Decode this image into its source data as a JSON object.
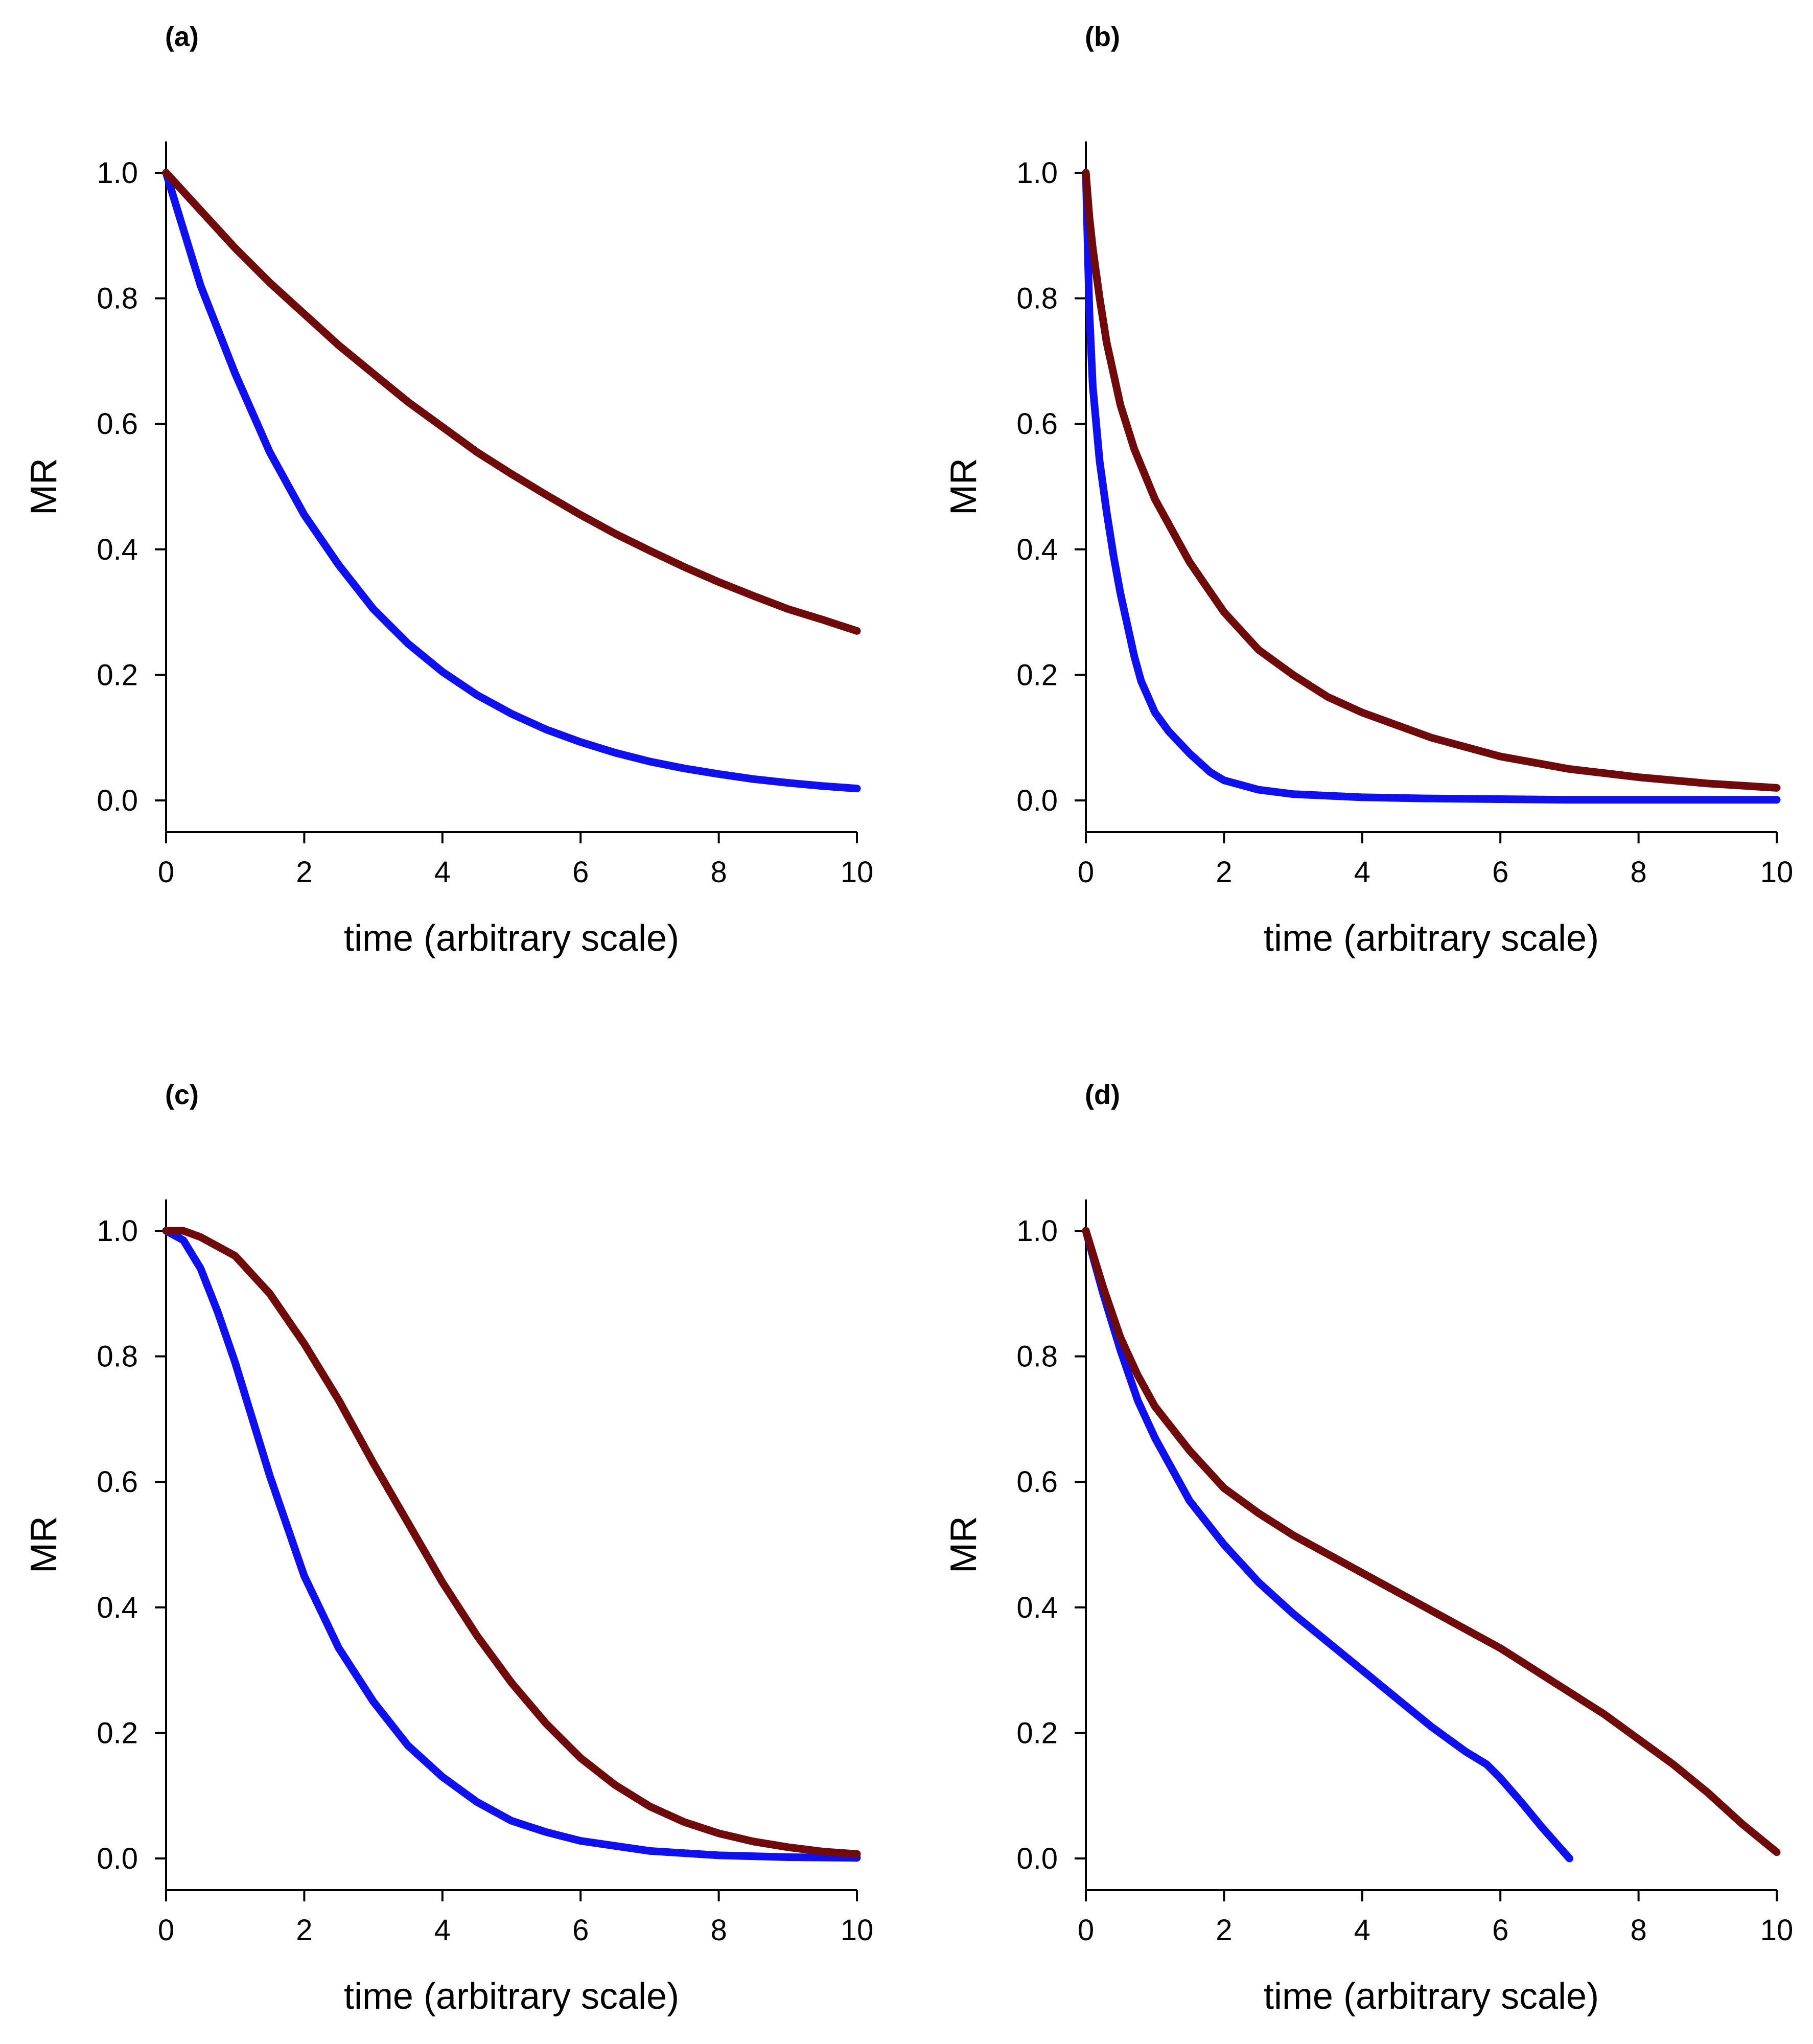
{
  "chart_data": [
    {
      "type": "line",
      "panel_label": "(a)",
      "xlabel": "time (arbitrary scale)",
      "ylabel": "MR",
      "xlim": [
        0,
        10
      ],
      "ylim": [
        -0.05,
        1.05
      ],
      "xticks": [
        0,
        2,
        4,
        6,
        8,
        10
      ],
      "yticks": [
        0.0,
        0.2,
        0.4,
        0.6,
        0.8,
        1.0
      ],
      "xtick_labels": [
        "0",
        "2",
        "4",
        "6",
        "8",
        "10"
      ],
      "ytick_labels": [
        "0.0",
        "0.2",
        "0.4",
        "0.6",
        "0.8",
        "1.0"
      ],
      "grid": false,
      "series": [
        {
          "name": "blue",
          "color": "#1010ee",
          "x": [
            0,
            0.5,
            1,
            1.5,
            2,
            2.5,
            3,
            3.5,
            4,
            4.5,
            5,
            5.5,
            6,
            6.5,
            7,
            7.5,
            8,
            8.5,
            9,
            9.5,
            10
          ],
          "y": [
            1.0,
            0.82,
            0.68,
            0.555,
            0.455,
            0.375,
            0.305,
            0.25,
            0.205,
            0.168,
            0.138,
            0.113,
            0.093,
            0.076,
            0.062,
            0.051,
            0.042,
            0.034,
            0.028,
            0.023,
            0.019
          ]
        },
        {
          "name": "dark red",
          "color": "#6e0a0a",
          "x": [
            0,
            0.5,
            1,
            1.5,
            2,
            2.5,
            3,
            3.5,
            4,
            4.5,
            5,
            5.5,
            6,
            6.5,
            7,
            7.5,
            8,
            8.5,
            9,
            9.5,
            10
          ],
          "y": [
            1.0,
            0.94,
            0.88,
            0.825,
            0.775,
            0.725,
            0.68,
            0.635,
            0.595,
            0.555,
            0.52,
            0.487,
            0.455,
            0.425,
            0.398,
            0.372,
            0.348,
            0.326,
            0.305,
            0.288,
            0.27
          ]
        }
      ]
    },
    {
      "type": "line",
      "panel_label": "(b)",
      "xlabel": "time (arbitrary scale)",
      "ylabel": "MR",
      "xlim": [
        0,
        10
      ],
      "ylim": [
        -0.05,
        1.05
      ],
      "xticks": [
        0,
        2,
        4,
        6,
        8,
        10
      ],
      "yticks": [
        0.0,
        0.2,
        0.4,
        0.6,
        0.8,
        1.0
      ],
      "xtick_labels": [
        "0",
        "2",
        "4",
        "6",
        "8",
        "10"
      ],
      "ytick_labels": [
        "0.0",
        "0.2",
        "0.4",
        "0.6",
        "0.8",
        "1.0"
      ],
      "grid": false,
      "series": [
        {
          "name": "blue",
          "color": "#1010ee",
          "x": [
            0,
            0.05,
            0.1,
            0.2,
            0.3,
            0.4,
            0.5,
            0.6,
            0.7,
            0.8,
            1,
            1.2,
            1.5,
            1.8,
            2,
            2.5,
            3,
            4,
            5,
            6,
            7,
            8,
            9,
            10
          ],
          "y": [
            1.0,
            0.78,
            0.66,
            0.54,
            0.46,
            0.39,
            0.33,
            0.28,
            0.23,
            0.19,
            0.14,
            0.11,
            0.075,
            0.045,
            0.032,
            0.017,
            0.01,
            0.005,
            0.003,
            0.002,
            0.001,
            0.001,
            0.001,
            0.001
          ]
        },
        {
          "name": "dark red",
          "color": "#6e0a0a",
          "x": [
            0,
            0.05,
            0.1,
            0.2,
            0.3,
            0.5,
            0.7,
            1,
            1.5,
            2,
            2.5,
            3,
            3.5,
            4,
            5,
            6,
            7,
            8,
            9,
            10
          ],
          "y": [
            1.0,
            0.93,
            0.88,
            0.8,
            0.73,
            0.63,
            0.56,
            0.48,
            0.38,
            0.3,
            0.24,
            0.2,
            0.165,
            0.14,
            0.1,
            0.07,
            0.05,
            0.037,
            0.027,
            0.02
          ]
        }
      ]
    },
    {
      "type": "line",
      "panel_label": "(c)",
      "xlabel": "time (arbitrary scale)",
      "ylabel": "MR",
      "xlim": [
        0,
        10
      ],
      "ylim": [
        -0.05,
        1.05
      ],
      "xticks": [
        0,
        2,
        4,
        6,
        8,
        10
      ],
      "yticks": [
        0.0,
        0.2,
        0.4,
        0.6,
        0.8,
        1.0
      ],
      "xtick_labels": [
        "0",
        "2",
        "4",
        "6",
        "8",
        "10"
      ],
      "ytick_labels": [
        "0.0",
        "0.2",
        "0.4",
        "0.6",
        "0.8",
        "1.0"
      ],
      "grid": false,
      "series": [
        {
          "name": "blue",
          "color": "#1010ee",
          "x": [
            0,
            0.25,
            0.5,
            0.75,
            1,
            1.25,
            1.5,
            1.75,
            2,
            2.5,
            3,
            3.5,
            4,
            4.5,
            5,
            5.5,
            6,
            7,
            8,
            9,
            10
          ],
          "y": [
            1.0,
            0.985,
            0.94,
            0.87,
            0.79,
            0.7,
            0.61,
            0.53,
            0.45,
            0.335,
            0.25,
            0.18,
            0.13,
            0.09,
            0.06,
            0.042,
            0.028,
            0.012,
            0.005,
            0.002,
            0.001
          ]
        },
        {
          "name": "dark red",
          "color": "#6e0a0a",
          "x": [
            0,
            0.25,
            0.5,
            1,
            1.5,
            2,
            2.5,
            3,
            3.5,
            4,
            4.5,
            5,
            5.5,
            6,
            6.5,
            7,
            7.5,
            8,
            8.5,
            9,
            9.5,
            10
          ],
          "y": [
            1.0,
            1.0,
            0.99,
            0.96,
            0.9,
            0.82,
            0.73,
            0.63,
            0.535,
            0.44,
            0.355,
            0.28,
            0.215,
            0.16,
            0.117,
            0.083,
            0.058,
            0.04,
            0.027,
            0.018,
            0.011,
            0.007
          ]
        }
      ]
    },
    {
      "type": "line",
      "panel_label": "(d)",
      "xlabel": "time (arbitrary scale)",
      "ylabel": "MR",
      "xlim": [
        0,
        10
      ],
      "ylim": [
        -0.05,
        1.05
      ],
      "xticks": [
        0,
        2,
        4,
        6,
        8,
        10
      ],
      "yticks": [
        0.0,
        0.2,
        0.4,
        0.6,
        0.8,
        1.0
      ],
      "xtick_labels": [
        "0",
        "2",
        "4",
        "6",
        "8",
        "10"
      ],
      "ytick_labels": [
        "0.0",
        "0.2",
        "0.4",
        "0.6",
        "0.8",
        "1.0"
      ],
      "grid": false,
      "series": [
        {
          "name": "blue",
          "color": "#1010ee",
          "x": [
            0,
            0.25,
            0.5,
            0.75,
            1,
            1.5,
            2,
            2.5,
            3,
            3.5,
            4,
            4.5,
            5,
            5.5,
            5.8,
            6,
            6.3,
            6.6,
            7
          ],
          "y": [
            1.0,
            0.9,
            0.81,
            0.73,
            0.67,
            0.57,
            0.5,
            0.44,
            0.39,
            0.345,
            0.3,
            0.255,
            0.21,
            0.17,
            0.15,
            0.128,
            0.09,
            0.05,
            0.0
          ]
        },
        {
          "name": "dark red",
          "color": "#6e0a0a",
          "x": [
            0,
            0.25,
            0.5,
            0.75,
            1,
            1.5,
            2,
            2.5,
            3,
            3.5,
            4,
            4.5,
            5,
            5.5,
            6,
            6.5,
            7,
            7.5,
            8,
            8.5,
            9,
            9.5,
            10
          ],
          "y": [
            1.0,
            0.91,
            0.83,
            0.77,
            0.72,
            0.65,
            0.59,
            0.55,
            0.515,
            0.485,
            0.455,
            0.425,
            0.395,
            0.365,
            0.335,
            0.3,
            0.265,
            0.23,
            0.19,
            0.15,
            0.105,
            0.055,
            0.01
          ]
        }
      ]
    }
  ]
}
